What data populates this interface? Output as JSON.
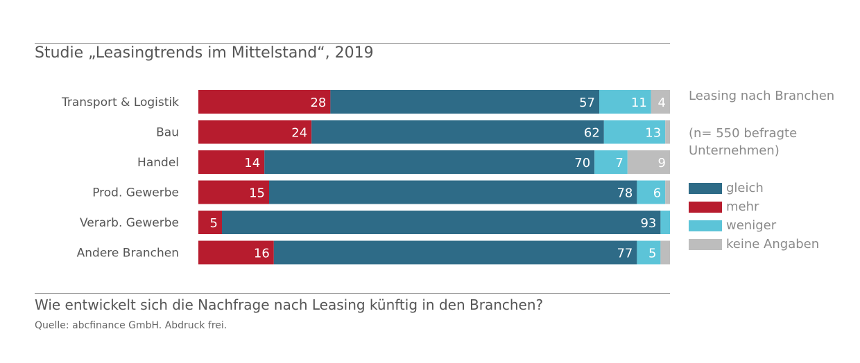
{
  "title": "Studie „Leasingtrends im Mittelstand“, 2019",
  "question": "Wie entwickelt sich die Nachfrage nach Leasing künftig in den Branchen?",
  "source": "Quelle: abcfinance GmbH. Abdruck frei.",
  "legend_title": "Leasing nach Branchen",
  "legend_note": "(n= 550 befragte Unternehmen)",
  "colors": {
    "mehr": "#b71c2e",
    "gleich": "#2e6b87",
    "weniger": "#5cc4d8",
    "keine": "#bdbdbd"
  },
  "chart_data": {
    "type": "bar",
    "orientation": "horizontal",
    "stacked": true,
    "xlim": [
      0,
      100
    ],
    "categories": [
      "Transport & Logistik",
      "Bau",
      "Handel",
      "Prod. Gewerbe",
      "Verarb. Gewerbe",
      "Andere Branchen"
    ],
    "series": [
      {
        "name": "mehr",
        "values": [
          28,
          24,
          14,
          15,
          5,
          16
        ],
        "labels": [
          "28",
          "24",
          "14",
          "15",
          "5",
          "16"
        ]
      },
      {
        "name": "gleich",
        "values": [
          57,
          62,
          70,
          78,
          93,
          77
        ],
        "labels": [
          "57",
          "62",
          "70",
          "78",
          "93",
          "77"
        ]
      },
      {
        "name": "weniger",
        "values": [
          11,
          13,
          7,
          6,
          2,
          5
        ],
        "labels": [
          "11",
          "13",
          "7",
          "6",
          "",
          "5"
        ]
      },
      {
        "name": "keine Angaben",
        "values": [
          4,
          1,
          9,
          1,
          0,
          2
        ],
        "labels": [
          "4",
          "",
          "9",
          "",
          "",
          ""
        ]
      }
    ],
    "legend": [
      {
        "name": "gleich",
        "color": "#2e6b87"
      },
      {
        "name": "mehr",
        "color": "#b71c2e"
      },
      {
        "name": "weniger",
        "color": "#5cc4d8"
      },
      {
        "name": "keine Angaben",
        "color": "#bdbdbd"
      }
    ],
    "legend_position": "right"
  }
}
